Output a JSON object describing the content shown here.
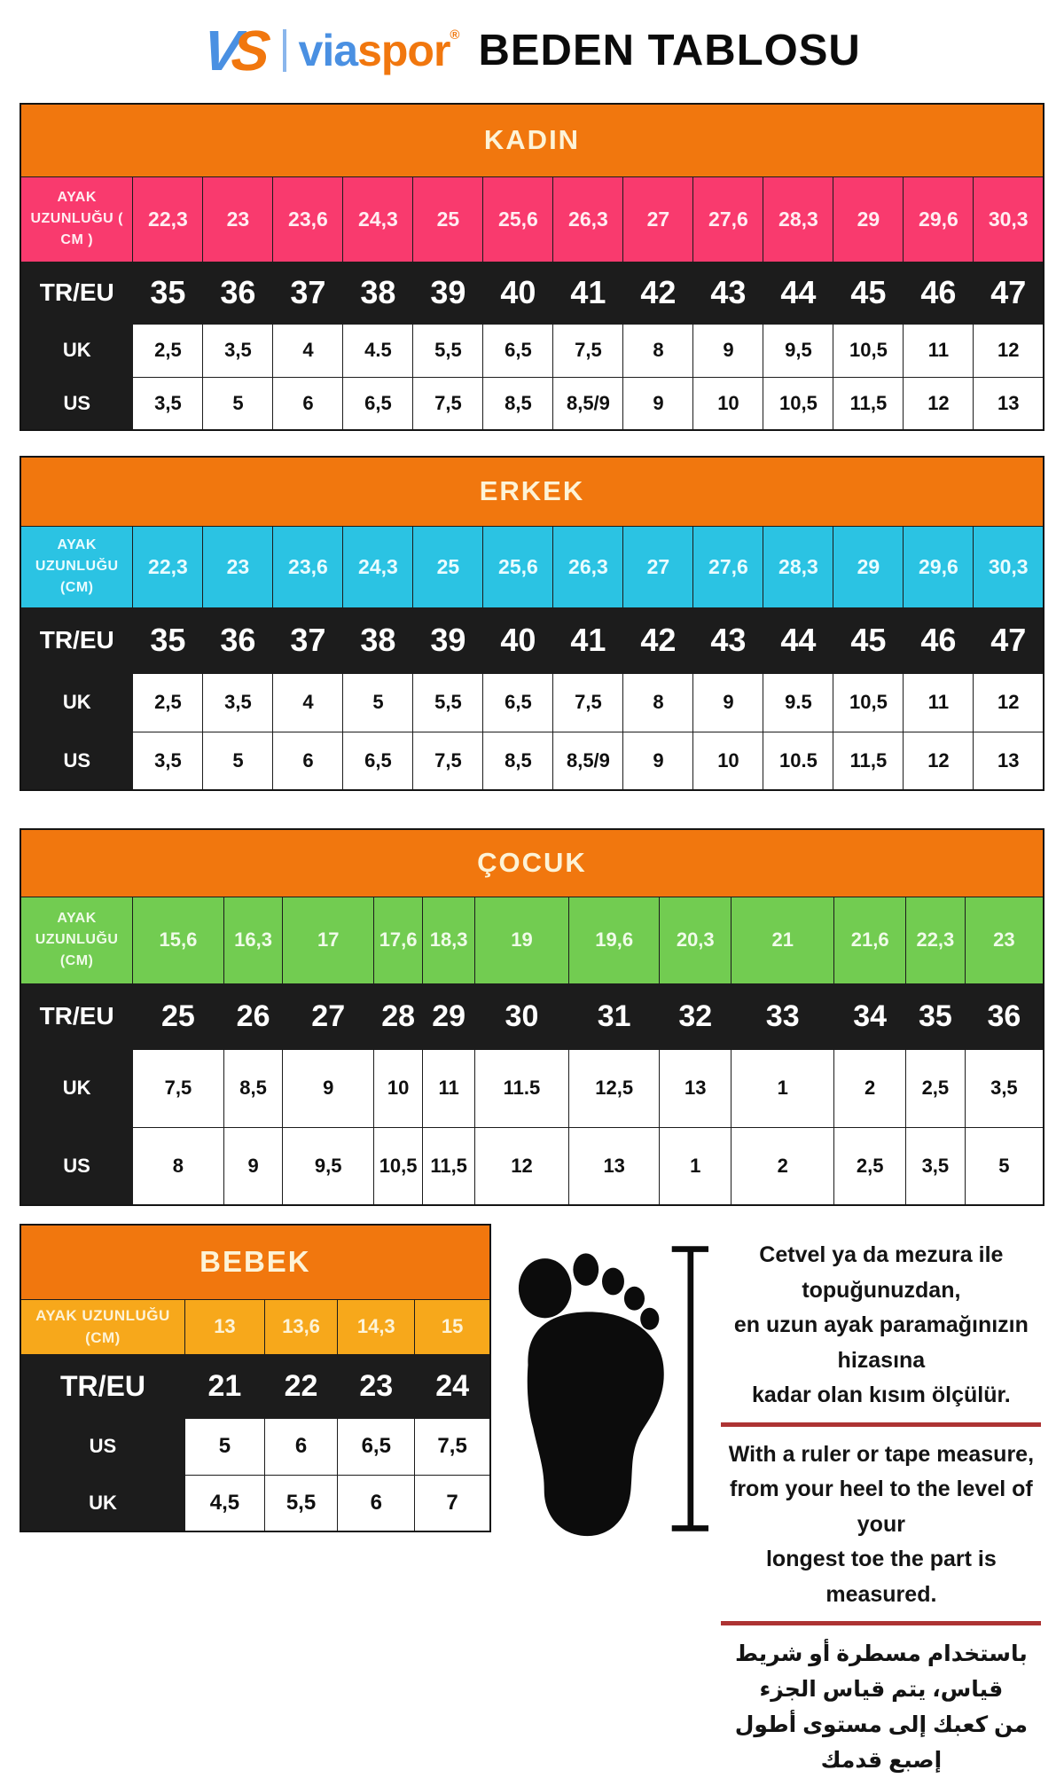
{
  "header": {
    "logo_mark_v": "V",
    "logo_mark_s": "S",
    "logo_text_1": "via",
    "logo_text_2": "spor",
    "logo_reg": "®",
    "title": "BEDEN TABLOSU"
  },
  "colors": {
    "header_orange": "#f1770e",
    "kadin_pink": "#f93a6e",
    "erkek_cyan": "#2bc3e3",
    "cocuk_green": "#72cc51",
    "bebek_amber": "#f7a81b",
    "dark_row": "#1c1c1c",
    "underline_red": "#ad3333"
  },
  "tables": [
    {
      "id": "kadin",
      "title": "KADIN",
      "accent": "#f93a6e",
      "accent_text": "#ffeef2",
      "rows": [
        {
          "key": "foot",
          "style": "accent",
          "label": "AYAK UZUNLUĞU ( CM )",
          "values": [
            "22,3",
            "23",
            "23,6",
            "24,3",
            "25",
            "25,6",
            "26,3",
            "27",
            "27,6",
            "28,3",
            "29",
            "29,6",
            "30,3"
          ]
        },
        {
          "key": "treu",
          "style": "dark",
          "label": "TR/EU",
          "values": [
            "35",
            "36",
            "37",
            "38",
            "39",
            "40",
            "41",
            "42",
            "43",
            "44",
            "45",
            "46",
            "47"
          ]
        },
        {
          "key": "uk",
          "style": "light",
          "label": "UK",
          "values": [
            "2,5",
            "3,5",
            "4",
            "4.5",
            "5,5",
            "6,5",
            "7,5",
            "8",
            "9",
            "9,5",
            "10,5",
            "11",
            "12"
          ]
        },
        {
          "key": "us",
          "style": "light",
          "label": "US",
          "values": [
            "3,5",
            "5",
            "6",
            "6,5",
            "7,5",
            "8,5",
            "8,5/9",
            "9",
            "10",
            "10,5",
            "11,5",
            "12",
            "13"
          ]
        }
      ]
    },
    {
      "id": "erkek",
      "title": "ERKEK",
      "accent": "#2bc3e3",
      "accent_text": "#eafcff",
      "rows": [
        {
          "key": "foot",
          "style": "accent",
          "label": "AYAK UZUNLUĞU (CM)",
          "values": [
            "22,3",
            "23",
            "23,6",
            "24,3",
            "25",
            "25,6",
            "26,3",
            "27",
            "27,6",
            "28,3",
            "29",
            "29,6",
            "30,3"
          ]
        },
        {
          "key": "treu",
          "style": "dark",
          "label": "TR/EU",
          "values": [
            "35",
            "36",
            "37",
            "38",
            "39",
            "40",
            "41",
            "42",
            "43",
            "44",
            "45",
            "46",
            "47"
          ]
        },
        {
          "key": "uk",
          "style": "light",
          "label": "UK",
          "values": [
            "2,5",
            "3,5",
            "4",
            "5",
            "5,5",
            "6,5",
            "7,5",
            "8",
            "9",
            "9.5",
            "10,5",
            "11",
            "12"
          ]
        },
        {
          "key": "us",
          "style": "light",
          "label": "US",
          "values": [
            "3,5",
            "5",
            "6",
            "6,5",
            "7,5",
            "8,5",
            "8,5/9",
            "9",
            "10",
            "10.5",
            "11,5",
            "12",
            "13"
          ]
        }
      ]
    },
    {
      "id": "cocuk",
      "title": "ÇOCUK",
      "accent": "#72cc51",
      "accent_text": "#f0fbe9",
      "rows": [
        {
          "key": "foot",
          "style": "accent",
          "label": "AYAK UZUNLUĞU (CM)",
          "values": [
            "15,6",
            "16,3",
            "17",
            "17,6",
            "18,3",
            "19",
            "19,6",
            "20,3",
            "21",
            "21,6",
            "22,3",
            "23"
          ]
        },
        {
          "key": "treu",
          "style": "dark",
          "label": "TR/EU",
          "values": [
            "25",
            "26",
            "27",
            "28",
            "29",
            "30",
            "31",
            "32",
            "33",
            "34",
            "35",
            "36"
          ]
        },
        {
          "key": "uk",
          "style": "light",
          "label": "UK",
          "values": [
            "7,5",
            "8,5",
            "9",
            "10",
            "11",
            "11.5",
            "12,5",
            "13",
            "1",
            "2",
            "2,5",
            "3,5"
          ]
        },
        {
          "key": "us",
          "style": "light",
          "label": "US",
          "values": [
            "8",
            "9",
            "9,5",
            "10,5",
            "11,5",
            "12",
            "13",
            "1",
            "2",
            "2,5",
            "3,5",
            "5"
          ]
        }
      ]
    },
    {
      "id": "bebek",
      "title": "BEBEK",
      "accent": "#f7a81b",
      "accent_text": "#fdf3d7",
      "rows": [
        {
          "key": "foot",
          "style": "accent",
          "label": "AYAK UZUNLUĞU (CM)",
          "values": [
            "13",
            "13,6",
            "14,3",
            "15"
          ]
        },
        {
          "key": "treu",
          "style": "dark",
          "label": "TR/EU",
          "values": [
            "21",
            "22",
            "23",
            "24"
          ]
        },
        {
          "key": "us",
          "style": "light",
          "label": "US",
          "values": [
            "5",
            "6",
            "6,5",
            "7,5"
          ]
        },
        {
          "key": "uk",
          "style": "light",
          "label": "UK",
          "values": [
            "4,5",
            "5,5",
            "6",
            "7"
          ]
        }
      ]
    }
  ],
  "instructions": {
    "tr": [
      "Cetvel ya da mezura ile topuğunuzdan,",
      "en uzun ayak paramağınızın hizasına",
      "kadar olan kısım ölçülür."
    ],
    "en": [
      "With a ruler or tape measure,",
      "from your heel to the level of your",
      "longest toe the part is measured."
    ],
    "ar": [
      "باستخدام مسطرة أو شريط قياس، يتم قياس الجزء",
      "من كعبك إلى مستوى أطول إصبع قدمك"
    ]
  }
}
